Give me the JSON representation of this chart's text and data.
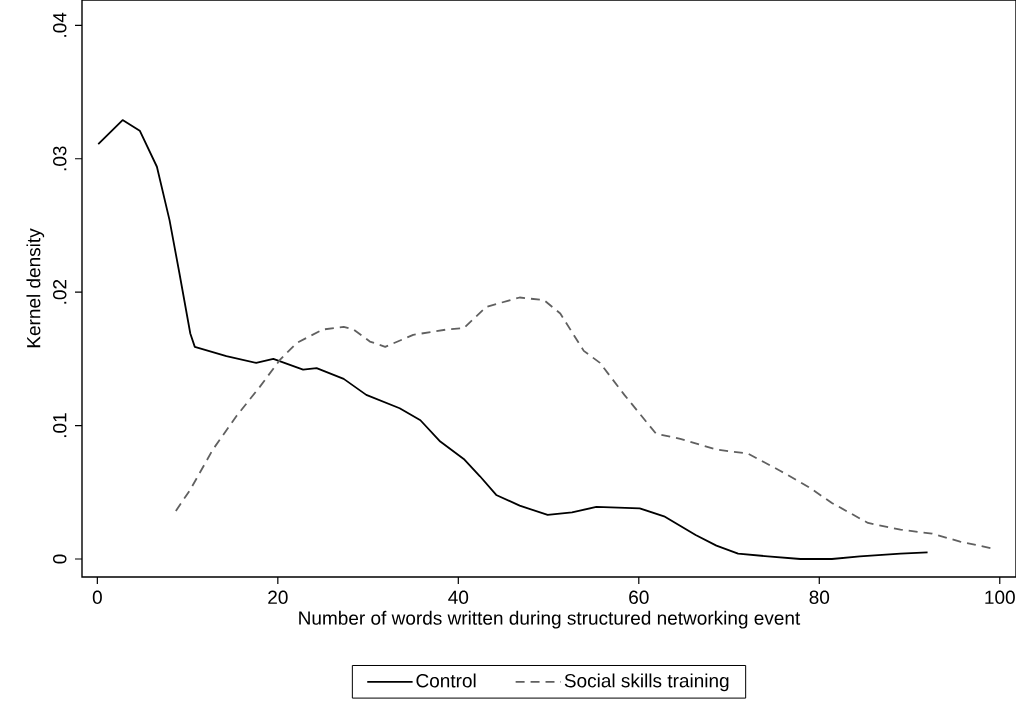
{
  "chart_data": {
    "type": "line",
    "xlabel": "Number of words written during structured networking event",
    "ylabel": "Kernel density",
    "xlim": [
      -1.7,
      101.8
    ],
    "ylim": [
      -0.00135,
      0.0419
    ],
    "xticks": [
      0,
      20,
      40,
      60,
      80,
      100
    ],
    "yticks": [
      {
        "value": 0,
        "label": "0"
      },
      {
        "value": 0.01,
        "label": ".01"
      },
      {
        "value": 0.02,
        "label": ".02"
      },
      {
        "value": 0.03,
        "label": ".03"
      },
      {
        "value": 0.04,
        "label": ".04"
      }
    ],
    "legend": "bottom",
    "grid": false,
    "series": [
      {
        "name": "Control",
        "color": "#000000",
        "line_style": "solid",
        "x": [
          0.1,
          2.8,
          4.7,
          6.6,
          8.0,
          9.1,
          10.3,
          10.8,
          14.3,
          17.6,
          19.5,
          22.8,
          24.3,
          27.3,
          29.8,
          33.5,
          35.8,
          38.0,
          40.6,
          42.4,
          44.2,
          46.8,
          49.9,
          52.6,
          55.3,
          60.1,
          62.8,
          66.3,
          68.6,
          71.0,
          74.3,
          77.9,
          81.4,
          84.5,
          89.0,
          92.0
        ],
        "values": [
          0.0311,
          0.0329,
          0.0321,
          0.0294,
          0.0254,
          0.0214,
          0.0169,
          0.0159,
          0.0152,
          0.0147,
          0.015,
          0.0142,
          0.0143,
          0.0135,
          0.0123,
          0.0113,
          0.0104,
          0.0088,
          0.0075,
          0.0062,
          0.0048,
          0.004,
          0.0033,
          0.0035,
          0.0039,
          0.0038,
          0.0032,
          0.0018,
          0.001,
          0.0004,
          0.0002,
          0.0,
          0.0,
          0.0002,
          0.0004,
          0.0005
        ]
      },
      {
        "name": "Social skills training",
        "color": "#606060",
        "line_style": "dashed",
        "x": [
          8.7,
          10.3,
          12.8,
          15.4,
          18.0,
          20.2,
          22.1,
          25.0,
          27.3,
          28.4,
          30.2,
          31.9,
          35.0,
          38.7,
          40.6,
          43.1,
          46.8,
          49.5,
          51.3,
          53.9,
          55.7,
          58.4,
          61.9,
          64.6,
          68.6,
          72.1,
          75.7,
          78.8,
          81.4,
          85.4,
          89.0,
          92.5,
          95.6,
          99.1
        ],
        "values": [
          0.0036,
          0.0052,
          0.0082,
          0.0107,
          0.0129,
          0.0149,
          0.0162,
          0.0172,
          0.0174,
          0.0172,
          0.0163,
          0.0159,
          0.0168,
          0.0172,
          0.0173,
          0.0189,
          0.0196,
          0.0194,
          0.0184,
          0.0156,
          0.0147,
          0.0123,
          0.0094,
          0.009,
          0.0082,
          0.0079,
          0.0066,
          0.0054,
          0.0042,
          0.0027,
          0.0022,
          0.0019,
          0.0013,
          0.0008
        ]
      }
    ]
  }
}
